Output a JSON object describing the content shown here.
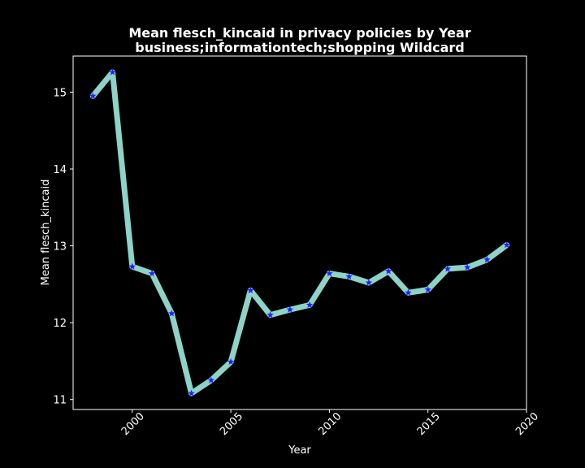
{
  "chart_data": {
    "type": "line",
    "title_line1": "Mean flesch_kincaid in privacy policies by Year",
    "title_line2": "business;informationtech;shopping Wildcard",
    "xlabel": "Year",
    "ylabel": "Mean flesch_kincaid",
    "xlim": [
      1997,
      2020
    ],
    "ylim": [
      10.87,
      15.47
    ],
    "x_ticks": [
      2000,
      2005,
      2010,
      2015,
      2020
    ],
    "y_ticks": [
      11,
      12,
      13,
      14,
      15
    ],
    "grid": false,
    "legend": "none",
    "series": [
      {
        "line_color": "#8dd3c7",
        "marker_color": "#1f1fff",
        "marker": "star",
        "x": [
          1998,
          1999,
          2000,
          2001,
          2002,
          2003,
          2004,
          2005,
          2006,
          2007,
          2008,
          2009,
          2010,
          2011,
          2012,
          2013,
          2014,
          2015,
          2016,
          2017,
          2018,
          2019
        ],
        "values": [
          14.95,
          15.26,
          12.73,
          12.64,
          12.12,
          11.08,
          11.25,
          11.49,
          12.42,
          12.1,
          12.17,
          12.23,
          12.64,
          12.6,
          12.52,
          12.67,
          12.39,
          12.43,
          12.7,
          12.72,
          12.82,
          13.01
        ]
      }
    ]
  }
}
